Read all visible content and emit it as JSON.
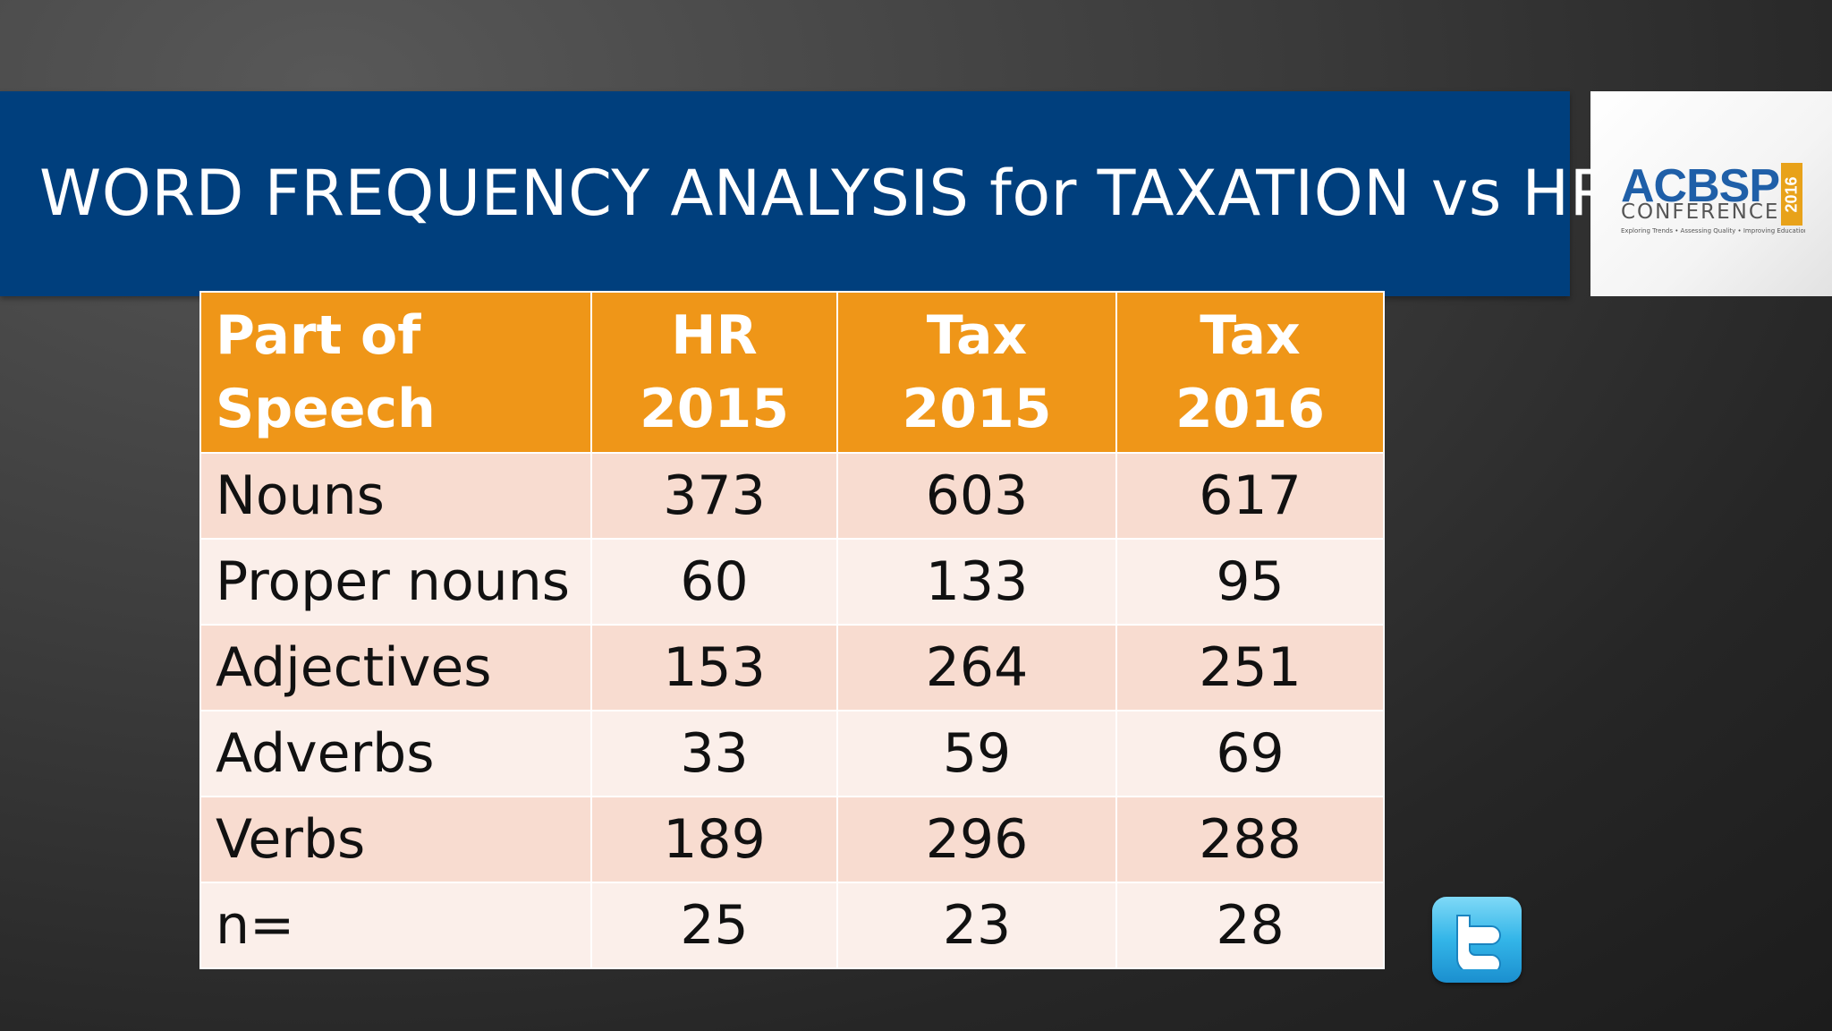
{
  "slide": {
    "title": "WORD FREQUENCY ANALYSIS for TAXATION vs HR"
  },
  "logo": {
    "main": "ACBSP",
    "sub": "CONFERENCE",
    "year": "2016",
    "tagline": "Exploring Trends • Assessing Quality • Improving Education",
    "accent_color": "#e8a21a",
    "brand_color": "#1f5fa8"
  },
  "table": {
    "header_color": "#ef9618",
    "headers": [
      [
        "Part of",
        "Speech"
      ],
      [
        "HR",
        "2015"
      ],
      [
        "Tax",
        "2015"
      ],
      [
        "Tax",
        "2016"
      ]
    ],
    "rows": [
      {
        "label": "Nouns",
        "values": [
          "373",
          "603",
          "617"
        ]
      },
      {
        "label": "Proper nouns",
        "values": [
          "60",
          "133",
          "95"
        ]
      },
      {
        "label": "Adjectives",
        "values": [
          "153",
          "264",
          "251"
        ]
      },
      {
        "label": "Adverbs",
        "values": [
          "33",
          "59",
          "69"
        ]
      },
      {
        "label": "Verbs",
        "values": [
          "189",
          "296",
          "288"
        ]
      },
      {
        "label": "n=",
        "values": [
          "25",
          "23",
          "28"
        ]
      }
    ]
  },
  "twitter": {
    "icon": "twitter-icon"
  }
}
